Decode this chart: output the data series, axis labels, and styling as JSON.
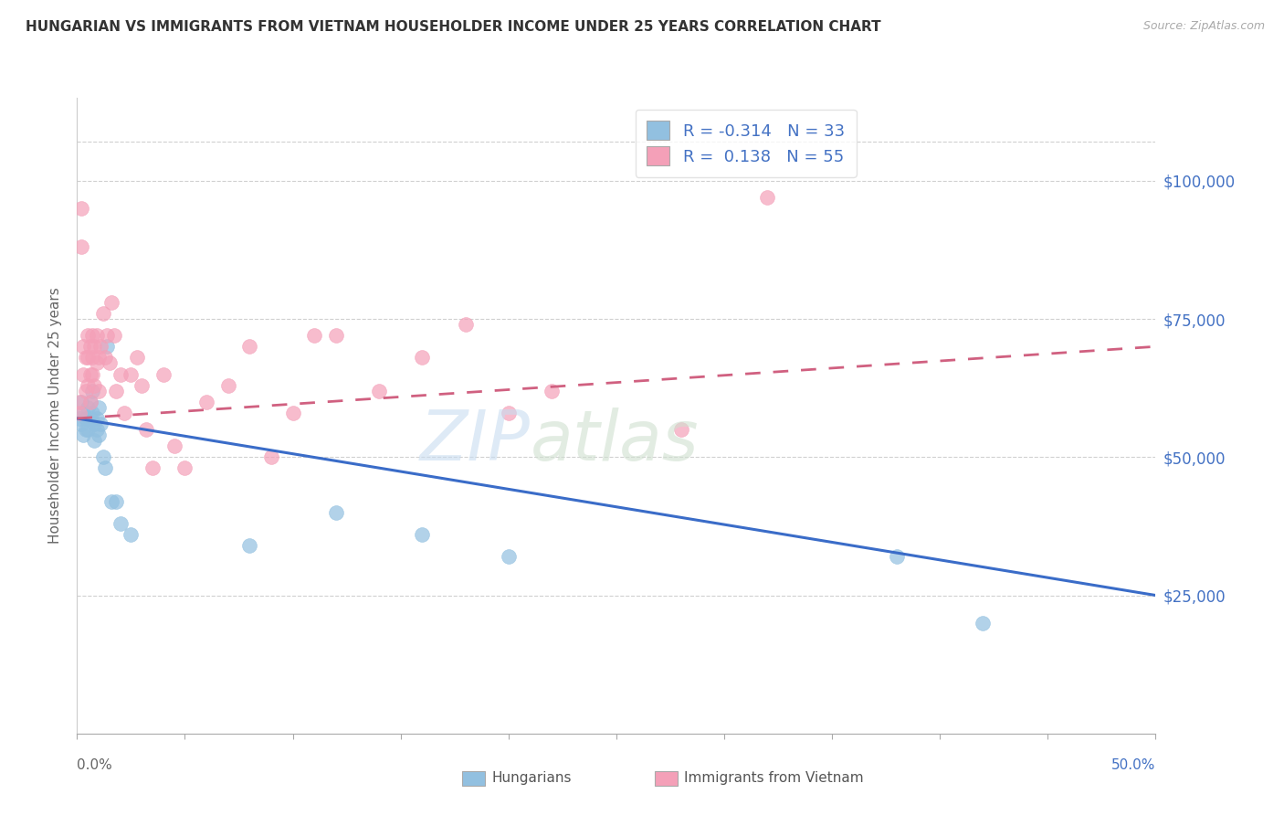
{
  "title": "HUNGARIAN VS IMMIGRANTS FROM VIETNAM HOUSEHOLDER INCOME UNDER 25 YEARS CORRELATION CHART",
  "source": "Source: ZipAtlas.com",
  "ylabel": "Householder Income Under 25 years",
  "xlim": [
    0.0,
    0.5
  ],
  "ylim": [
    0,
    115000
  ],
  "yticks": [
    25000,
    50000,
    75000,
    100000
  ],
  "ytick_labels": [
    "$25,000",
    "$50,000",
    "$75,000",
    "$100,000"
  ],
  "hungarian_color": "#92c0e0",
  "vietnam_color": "#f4a0b8",
  "hungarian_line_color": "#3a6cc8",
  "vietnam_line_color": "#d06080",
  "watermark_zip": "ZIP",
  "watermark_atlas": "atlas",
  "hungarian_x": [
    0.001,
    0.002,
    0.002,
    0.003,
    0.003,
    0.004,
    0.004,
    0.005,
    0.005,
    0.006,
    0.006,
    0.007,
    0.007,
    0.008,
    0.008,
    0.009,
    0.009,
    0.01,
    0.01,
    0.011,
    0.012,
    0.013,
    0.014,
    0.016,
    0.018,
    0.02,
    0.025,
    0.08,
    0.12,
    0.16,
    0.2,
    0.38,
    0.42
  ],
  "hungarian_y": [
    57000,
    60000,
    56000,
    58000,
    54000,
    57000,
    55000,
    59000,
    55000,
    60000,
    57000,
    62000,
    58000,
    56000,
    53000,
    55000,
    57000,
    59000,
    54000,
    56000,
    50000,
    48000,
    70000,
    42000,
    42000,
    38000,
    36000,
    34000,
    40000,
    36000,
    32000,
    32000,
    20000
  ],
  "vietnam_x": [
    0.001,
    0.001,
    0.002,
    0.002,
    0.003,
    0.003,
    0.004,
    0.004,
    0.005,
    0.005,
    0.005,
    0.006,
    0.006,
    0.006,
    0.007,
    0.007,
    0.007,
    0.008,
    0.008,
    0.009,
    0.009,
    0.01,
    0.01,
    0.011,
    0.012,
    0.013,
    0.014,
    0.015,
    0.016,
    0.017,
    0.018,
    0.02,
    0.022,
    0.025,
    0.028,
    0.03,
    0.032,
    0.035,
    0.04,
    0.045,
    0.05,
    0.06,
    0.07,
    0.08,
    0.09,
    0.1,
    0.11,
    0.12,
    0.14,
    0.16,
    0.18,
    0.2,
    0.22,
    0.28,
    0.32
  ],
  "vietnam_y": [
    60000,
    58000,
    95000,
    88000,
    65000,
    70000,
    68000,
    62000,
    72000,
    68000,
    63000,
    70000,
    65000,
    60000,
    72000,
    68000,
    65000,
    70000,
    63000,
    72000,
    67000,
    68000,
    62000,
    70000,
    76000,
    68000,
    72000,
    67000,
    78000,
    72000,
    62000,
    65000,
    58000,
    65000,
    68000,
    63000,
    55000,
    48000,
    65000,
    52000,
    48000,
    60000,
    63000,
    70000,
    50000,
    58000,
    72000,
    72000,
    62000,
    68000,
    74000,
    58000,
    62000,
    55000,
    97000
  ]
}
